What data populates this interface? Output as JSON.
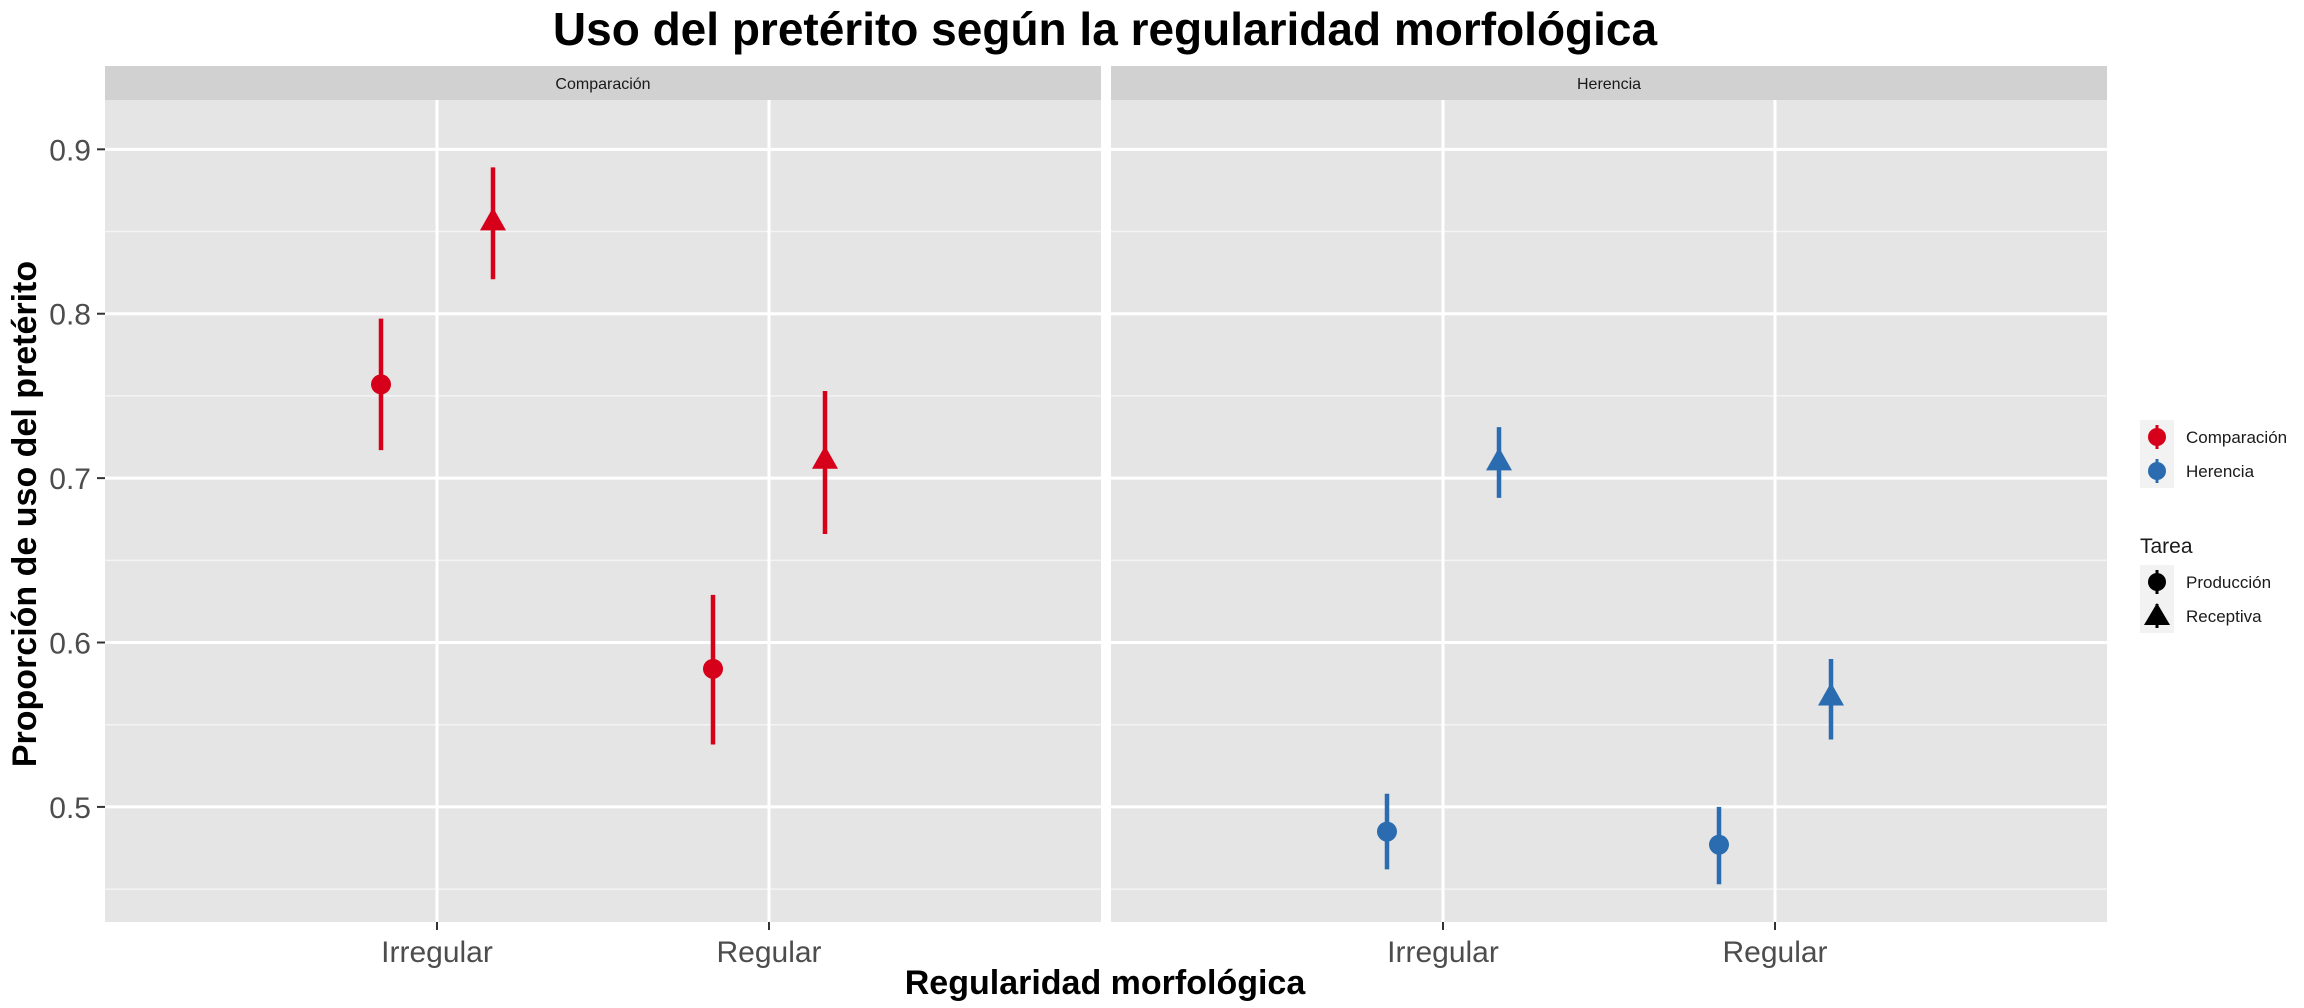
{
  "chart_data": {
    "type": "scatter",
    "title": "Uso del pretérito según la regularidad morfológica",
    "xlabel": "Regularidad morfológica",
    "ylabel": "Proporción de uso del pretérito",
    "categories": [
      "Irregular",
      "Regular"
    ],
    "ylim": [
      0.43,
      0.93
    ],
    "yticks": [
      0.5,
      0.6,
      0.7,
      0.8,
      0.9
    ],
    "yticklabels": [
      "0.5",
      "0.6",
      "0.7",
      "0.8",
      "0.9"
    ],
    "grid": true,
    "legend_position": "right",
    "panels": [
      {
        "label": "Comparación",
        "color": "#d7001b",
        "series": [
          {
            "tarea": "Producción",
            "shape": "circle",
            "points": [
              {
                "x": "Irregular",
                "y": 0.757,
                "lo": 0.717,
                "hi": 0.797
              },
              {
                "x": "Regular",
                "y": 0.584,
                "lo": 0.538,
                "hi": 0.629
              }
            ]
          },
          {
            "tarea": "Receptiva",
            "shape": "triangle",
            "points": [
              {
                "x": "Irregular",
                "y": 0.856,
                "lo": 0.821,
                "hi": 0.889
              },
              {
                "x": "Regular",
                "y": 0.711,
                "lo": 0.666,
                "hi": 0.753
              }
            ]
          }
        ]
      },
      {
        "label": "Herencia",
        "color": "#2b6cb0",
        "series": [
          {
            "tarea": "Producción",
            "shape": "circle",
            "points": [
              {
                "x": "Irregular",
                "y": 0.485,
                "lo": 0.462,
                "hi": 0.508
              },
              {
                "x": "Regular",
                "y": 0.477,
                "lo": 0.453,
                "hi": 0.5
              }
            ]
          },
          {
            "tarea": "Receptiva",
            "shape": "triangle",
            "points": [
              {
                "x": "Irregular",
                "y": 0.71,
                "lo": 0.688,
                "hi": 0.731
              },
              {
                "x": "Regular",
                "y": 0.567,
                "lo": 0.541,
                "hi": 0.59
              }
            ]
          }
        ]
      }
    ],
    "legend": {
      "group_items": [
        {
          "label": "Comparación",
          "color": "#d7001b"
        },
        {
          "label": "Herencia",
          "color": "#2b6cb0"
        }
      ],
      "shape_title": "Tarea",
      "shape_items": [
        {
          "label": "Producción",
          "shape": "circle"
        },
        {
          "label": "Receptiva",
          "shape": "triangle"
        }
      ]
    }
  }
}
